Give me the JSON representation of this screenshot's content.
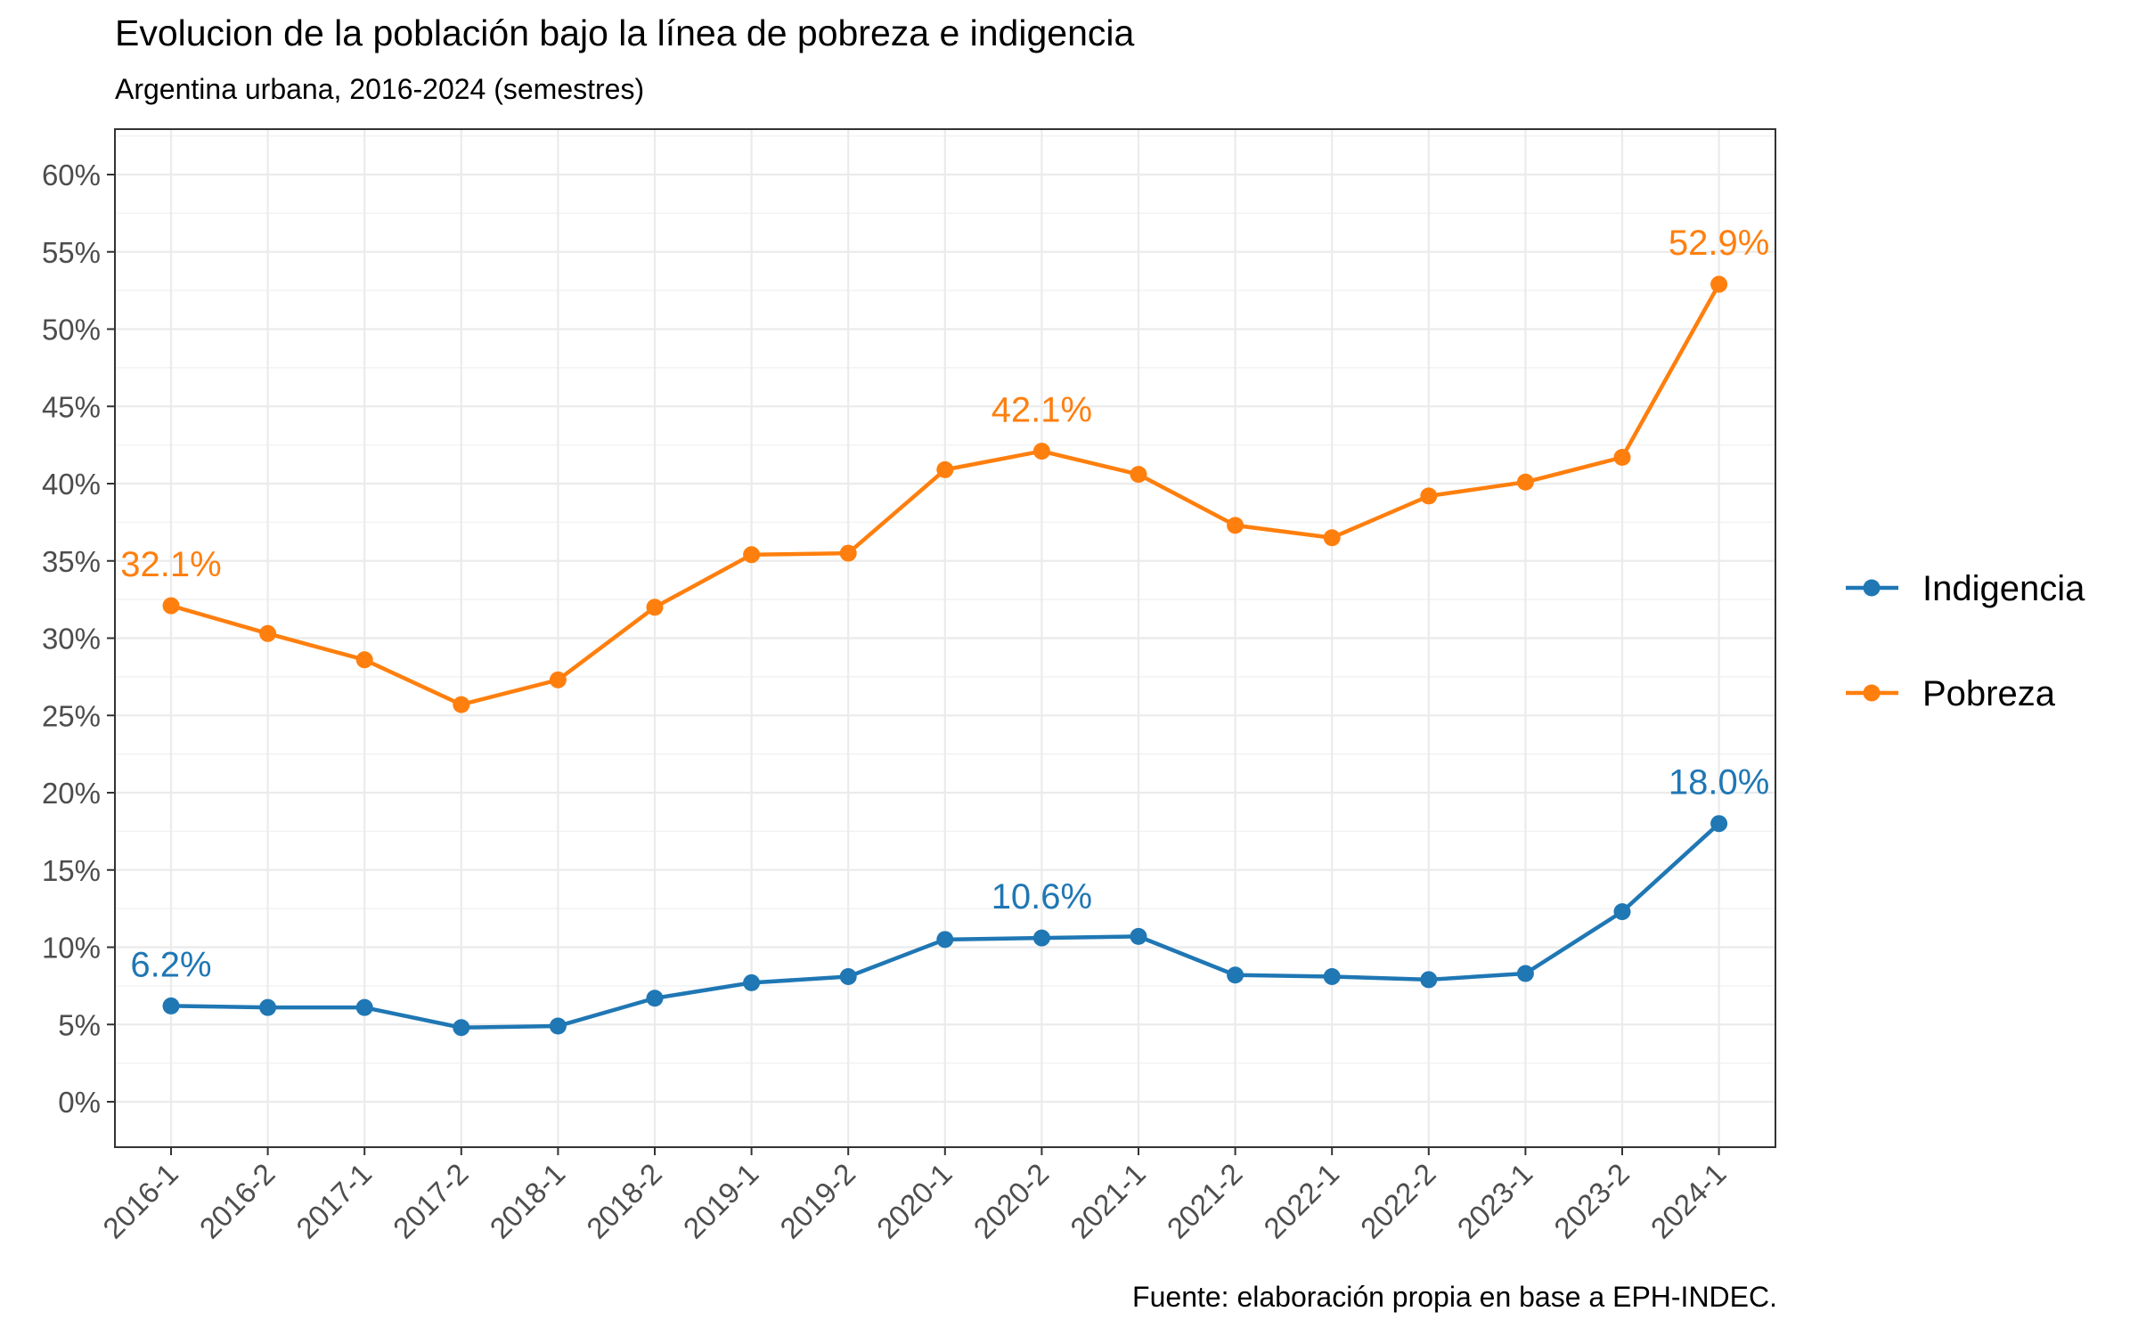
{
  "chart_data": {
    "type": "line",
    "title": "Evolucion de la población bajo la línea de pobreza e indigencia",
    "subtitle": "Argentina urbana, 2016-2024 (semestres)",
    "caption": "Fuente: elaboración propia en base a EPH-INDEC.",
    "xlabel": "",
    "ylabel": "",
    "categories": [
      "2016-1",
      "2016-2",
      "2017-1",
      "2017-2",
      "2018-1",
      "2018-2",
      "2019-1",
      "2019-2",
      "2020-1",
      "2020-2",
      "2021-1",
      "2021-2",
      "2022-1",
      "2022-2",
      "2023-1",
      "2023-2",
      "2024-1"
    ],
    "ylim": [
      0,
      60
    ],
    "yticks": [
      0,
      5,
      10,
      15,
      20,
      25,
      30,
      35,
      40,
      45,
      50,
      55,
      60
    ],
    "ytick_labels": [
      "0%",
      "5%",
      "10%",
      "15%",
      "20%",
      "25%",
      "30%",
      "35%",
      "40%",
      "45%",
      "50%",
      "55%",
      "60%"
    ],
    "grid": true,
    "legend_position": "right",
    "series": [
      {
        "name": "Indigencia",
        "color": "#1f77b4",
        "values": [
          6.2,
          6.1,
          6.1,
          4.8,
          4.9,
          6.7,
          7.7,
          8.1,
          10.5,
          10.6,
          10.7,
          8.2,
          8.1,
          7.9,
          8.3,
          12.3,
          18.0
        ],
        "annotations": [
          {
            "index": 0,
            "text": "6.2%"
          },
          {
            "index": 9,
            "text": "10.6%"
          },
          {
            "index": 16,
            "text": "18.0%"
          }
        ]
      },
      {
        "name": "Pobreza",
        "color": "#ff7f0e",
        "values": [
          32.1,
          30.3,
          28.6,
          25.7,
          27.3,
          32.0,
          35.4,
          35.5,
          40.9,
          42.1,
          40.6,
          37.3,
          36.5,
          39.2,
          40.1,
          41.7,
          52.9
        ],
        "annotations": [
          {
            "index": 0,
            "text": "32.1%"
          },
          {
            "index": 9,
            "text": "42.1%"
          },
          {
            "index": 16,
            "text": "52.9%"
          }
        ]
      }
    ]
  }
}
